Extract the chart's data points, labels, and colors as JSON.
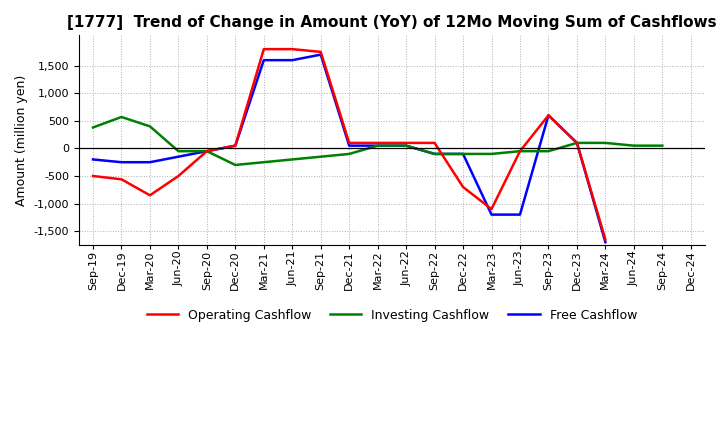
{
  "title": "[1777]  Trend of Change in Amount (YoY) of 12Mo Moving Sum of Cashflows",
  "ylabel": "Amount (million yen)",
  "x_labels": [
    "Sep-19",
    "Dec-19",
    "Mar-20",
    "Jun-20",
    "Sep-20",
    "Dec-20",
    "Mar-21",
    "Jun-21",
    "Sep-21",
    "Dec-21",
    "Mar-22",
    "Jun-22",
    "Sep-22",
    "Dec-22",
    "Mar-23",
    "Jun-23",
    "Sep-23",
    "Dec-23",
    "Mar-24",
    "Jun-24",
    "Sep-24",
    "Dec-24"
  ],
  "operating": [
    -500,
    -560,
    -850,
    -500,
    -50,
    50,
    1800,
    1800,
    1750,
    100,
    100,
    100,
    100,
    -700,
    -1100,
    -50,
    600,
    100,
    -1650,
    null,
    null,
    null
  ],
  "investing": [
    380,
    570,
    400,
    -50,
    -50,
    -300,
    -250,
    -200,
    -150,
    -100,
    50,
    50,
    -100,
    -100,
    -100,
    -50,
    -50,
    100,
    100,
    50,
    50,
    null
  ],
  "free": [
    -200,
    -250,
    -250,
    -150,
    -50,
    50,
    1600,
    1600,
    1700,
    50,
    50,
    50,
    -100,
    -100,
    -1200,
    -1200,
    600,
    100,
    -1700,
    null,
    null,
    null
  ],
  "operating_color": "#ff0000",
  "investing_color": "#008000",
  "free_color": "#0000ff",
  "grid_color": "#b0b0b0",
  "background_color": "#ffffff",
  "ylim_min": -1750,
  "ylim_max": 2050,
  "yticks": [
    -1500,
    -1000,
    -500,
    0,
    500,
    1000,
    1500
  ],
  "title_fontsize": 11,
  "ylabel_fontsize": 9,
  "tick_fontsize": 8,
  "legend_fontsize": 9,
  "linewidth": 1.8
}
